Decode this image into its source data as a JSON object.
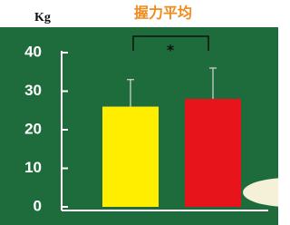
{
  "chart_data": {
    "type": "bar",
    "title": "握力平均",
    "y_label": "Kg",
    "annotation": "*",
    "categories": [
      null,
      null
    ],
    "values": [
      26,
      28
    ],
    "errors": [
      7,
      8
    ],
    "colors": [
      "#ffee00",
      "#e8141c"
    ],
    "error_color": "#d8d8d8",
    "ylim": [
      0,
      40
    ],
    "yticks": [
      0,
      10,
      20,
      30,
      40
    ],
    "background": "#1e6b3c",
    "axis_color": "#ffffff"
  }
}
